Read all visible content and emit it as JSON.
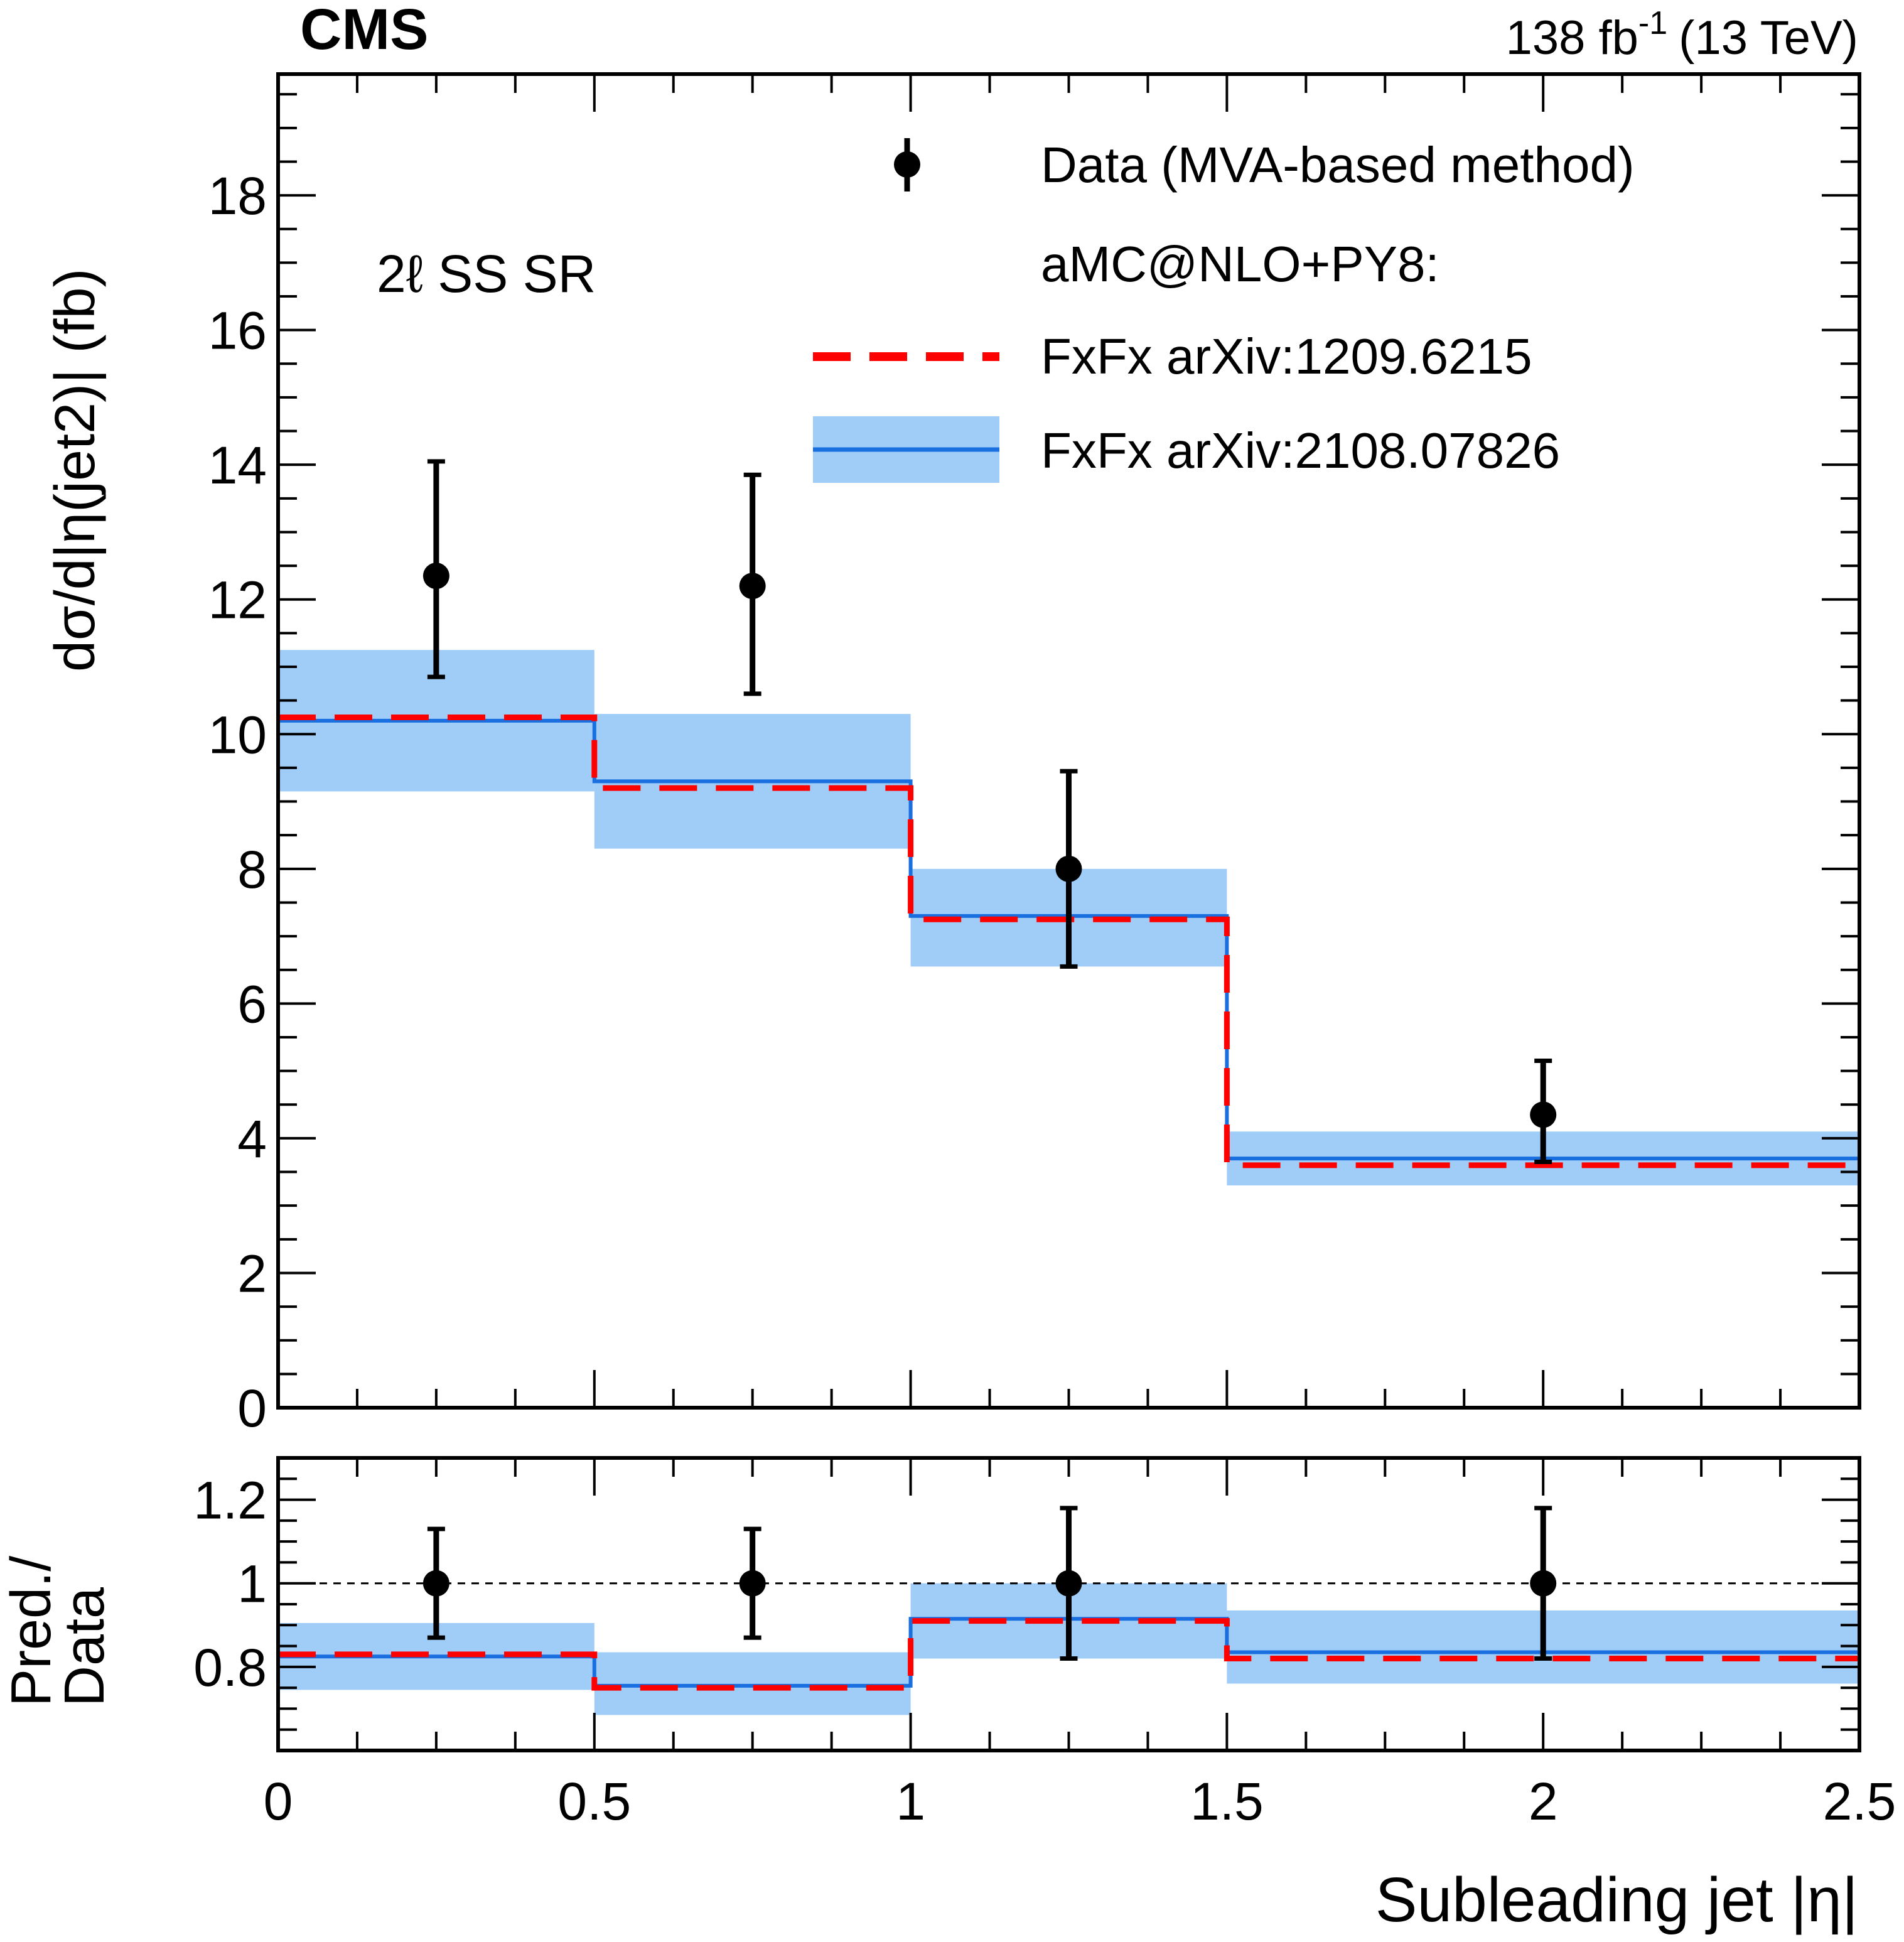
{
  "header": {
    "experiment": "CMS",
    "lumi_value": "138 fb",
    "lumi_exponent": "-1",
    "energy": "(13 TeV)"
  },
  "region_label": "2ℓ SS SR",
  "legend": {
    "data_label": "Data (MVA-based method)",
    "generator_label": "aMC@NLO+PY8:",
    "pred1_label": "FxFx arXiv:1209.6215",
    "pred2_label": "FxFx arXiv:2108.07826"
  },
  "colors": {
    "band": "#9fcdf8",
    "pred1_line": "#ff0000",
    "pred2_line": "#1a6fe0",
    "data": "#000000"
  },
  "chart_data": [
    {
      "type": "histogram",
      "name": "main",
      "ylabel": "dσ/d|η(jet2)| (fb)",
      "xlim": [
        0,
        2.5
      ],
      "ylim": [
        0,
        19.8
      ],
      "y_ticks": [
        "0",
        "2",
        "4",
        "6",
        "8",
        "10",
        "12",
        "14",
        "16",
        "18"
      ],
      "bin_edges": [
        0,
        0.5,
        1.0,
        1.5,
        2.5
      ],
      "data": {
        "x": [
          0.25,
          0.75,
          1.25,
          2.0
        ],
        "y": [
          12.35,
          12.2,
          8.0,
          4.35
        ],
        "err_low": [
          1.5,
          1.6,
          1.45,
          0.7
        ],
        "err_high": [
          1.7,
          1.65,
          1.45,
          0.8
        ]
      },
      "pred1": [
        10.25,
        9.2,
        7.25,
        3.6
      ],
      "pred2": [
        10.2,
        9.3,
        7.3,
        3.7
      ],
      "band_low": [
        9.15,
        8.3,
        6.55,
        3.3
      ],
      "band_high": [
        11.25,
        10.3,
        8.0,
        4.1
      ]
    },
    {
      "type": "ratio",
      "name": "ratio",
      "ylabel_line1": "Pred./",
      "ylabel_line2": "Data",
      "xlabel": "Subleading jet |η|",
      "xlim": [
        0,
        2.5
      ],
      "ylim": [
        0.6,
        1.3
      ],
      "x_ticks": [
        "0",
        "0.5",
        "1",
        "1.5",
        "2",
        "2.5"
      ],
      "y_ticks": [
        "0.8",
        "1",
        "1.2"
      ],
      "reference_line": 1.0,
      "data": {
        "x": [
          0.25,
          0.75,
          1.25,
          2.0
        ],
        "y": [
          1.0,
          1.0,
          1.0,
          1.0
        ],
        "err_low": [
          0.13,
          0.13,
          0.18,
          0.18
        ],
        "err_high": [
          0.13,
          0.13,
          0.18,
          0.18
        ]
      },
      "pred1": [
        0.83,
        0.75,
        0.91,
        0.82
      ],
      "pred2": [
        0.825,
        0.755,
        0.915,
        0.835
      ],
      "band_low": [
        0.745,
        0.685,
        0.82,
        0.76
      ],
      "band_high": [
        0.905,
        0.835,
        1.0,
        0.935
      ]
    }
  ]
}
